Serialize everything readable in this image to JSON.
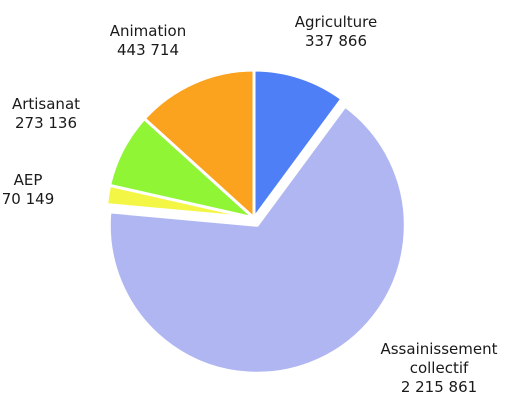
{
  "chart_data": {
    "type": "pie",
    "start_angle_deg": 90,
    "direction": "clockwise",
    "slices": [
      {
        "label_lines": [
          "Agriculture",
          "337 866"
        ],
        "value": 337866,
        "color": "#4f7ff6",
        "exploded": false
      },
      {
        "label_lines": [
          "Assainissement",
          "collectif",
          "2 215 861"
        ],
        "value": 2215861,
        "color": "#b0b6f2",
        "exploded": true
      },
      {
        "label_lines": [
          "AEP",
          "70 149"
        ],
        "value": 70149,
        "color": "#f3f645",
        "exploded": false
      },
      {
        "label_lines": [
          "Artisanat",
          "273 136"
        ],
        "value": 273136,
        "color": "#8ff534",
        "exploded": false
      },
      {
        "label_lines": [
          "Animation",
          "443 714"
        ],
        "value": 443714,
        "color": "#fba21e",
        "exploded": false
      }
    ]
  }
}
